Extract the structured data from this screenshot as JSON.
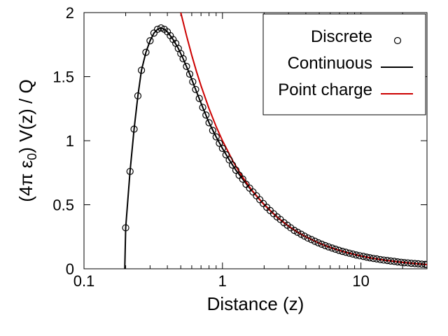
{
  "chart_data": {
    "type": "scatter",
    "title": "",
    "xlabel": "Distance (z)",
    "ylabel": "(4π ε0) V(z) / Q",
    "ylabel_parts": {
      "open": "(4π  ε",
      "sub": "0",
      "close": ") V(z) / Q"
    },
    "xscale": "log",
    "xlim": [
      0.1,
      30
    ],
    "ylim": [
      0,
      2
    ],
    "x_ticks": [
      0.1,
      1,
      10
    ],
    "x_tick_labels": [
      "0.1",
      "1",
      "10"
    ],
    "y_ticks": [
      0,
      0.5,
      1,
      1.5,
      2
    ],
    "y_tick_labels": [
      "0",
      "0.5",
      "1",
      "1.5",
      "2"
    ],
    "grid": false,
    "legend_position": "top-right",
    "series": [
      {
        "name": "Discrete",
        "style": "open-circle",
        "color": "#000000",
        "points": [
          [
            0.2,
            0.32
          ],
          [
            0.215,
            0.76
          ],
          [
            0.23,
            1.09
          ],
          [
            0.245,
            1.35
          ],
          [
            0.26,
            1.55
          ],
          [
            0.28,
            1.69
          ],
          [
            0.3,
            1.78
          ],
          [
            0.32,
            1.84
          ],
          [
            0.34,
            1.87
          ],
          [
            0.36,
            1.88
          ],
          [
            0.38,
            1.87
          ],
          [
            0.4,
            1.85
          ],
          [
            0.42,
            1.82
          ],
          [
            0.44,
            1.79
          ],
          [
            0.46,
            1.76
          ],
          [
            0.48,
            1.72
          ],
          [
            0.5,
            1.68
          ],
          [
            0.52,
            1.64
          ],
          [
            0.55,
            1.58
          ],
          [
            0.58,
            1.52
          ],
          [
            0.61,
            1.46
          ],
          [
            0.64,
            1.4
          ],
          [
            0.68,
            1.33
          ],
          [
            0.72,
            1.26
          ],
          [
            0.76,
            1.2
          ],
          [
            0.8,
            1.14
          ],
          [
            0.85,
            1.08
          ],
          [
            0.9,
            1.03
          ],
          [
            0.95,
            0.98
          ],
          [
            1.0,
            0.94
          ],
          [
            1.06,
            0.89
          ],
          [
            1.12,
            0.85
          ],
          [
            1.18,
            0.81
          ],
          [
            1.25,
            0.77
          ],
          [
            1.32,
            0.73
          ],
          [
            1.4,
            0.7
          ],
          [
            1.48,
            0.66
          ],
          [
            1.57,
            0.63
          ],
          [
            1.66,
            0.6
          ],
          [
            1.76,
            0.57
          ],
          [
            1.86,
            0.54
          ],
          [
            1.97,
            0.51
          ],
          [
            2.09,
            0.48
          ],
          [
            2.21,
            0.455
          ],
          [
            2.34,
            0.43
          ],
          [
            2.48,
            0.405
          ],
          [
            2.62,
            0.385
          ],
          [
            2.78,
            0.36
          ],
          [
            2.94,
            0.34
          ],
          [
            3.11,
            0.32
          ],
          [
            3.3,
            0.3
          ],
          [
            3.49,
            0.285
          ],
          [
            3.7,
            0.27
          ],
          [
            3.91,
            0.255
          ],
          [
            4.14,
            0.24
          ],
          [
            4.39,
            0.228
          ],
          [
            4.65,
            0.215
          ],
          [
            4.92,
            0.203
          ],
          [
            5.21,
            0.192
          ],
          [
            5.52,
            0.181
          ],
          [
            5.84,
            0.171
          ],
          [
            6.19,
            0.162
          ],
          [
            6.55,
            0.153
          ],
          [
            6.94,
            0.144
          ],
          [
            7.35,
            0.136
          ],
          [
            7.78,
            0.129
          ],
          [
            8.24,
            0.122
          ],
          [
            8.73,
            0.115
          ],
          [
            9.24,
            0.108
          ],
          [
            9.79,
            0.102
          ],
          [
            10.4,
            0.097
          ],
          [
            11.0,
            0.091
          ],
          [
            11.6,
            0.086
          ],
          [
            12.3,
            0.081
          ],
          [
            13.0,
            0.077
          ],
          [
            13.8,
            0.072
          ],
          [
            14.6,
            0.068
          ],
          [
            15.5,
            0.065
          ],
          [
            16.4,
            0.061
          ],
          [
            17.4,
            0.058
          ],
          [
            18.4,
            0.054
          ],
          [
            19.5,
            0.051
          ],
          [
            20.6,
            0.048
          ],
          [
            21.8,
            0.046
          ],
          [
            23.1,
            0.043
          ],
          [
            24.5,
            0.041
          ],
          [
            25.9,
            0.039
          ],
          [
            27.5,
            0.036
          ],
          [
            29.1,
            0.034
          ],
          [
            30.0,
            0.033
          ]
        ]
      },
      {
        "name": "Continuous",
        "style": "line",
        "color": "#000000",
        "points": [
          [
            0.197,
            0.0
          ],
          [
            0.2,
            0.32
          ],
          [
            0.215,
            0.76
          ],
          [
            0.23,
            1.09
          ],
          [
            0.245,
            1.35
          ],
          [
            0.26,
            1.55
          ],
          [
            0.28,
            1.69
          ],
          [
            0.3,
            1.78
          ],
          [
            0.32,
            1.84
          ],
          [
            0.34,
            1.87
          ],
          [
            0.36,
            1.88
          ],
          [
            0.38,
            1.87
          ],
          [
            0.4,
            1.85
          ],
          [
            0.44,
            1.79
          ],
          [
            0.48,
            1.72
          ],
          [
            0.52,
            1.64
          ],
          [
            0.58,
            1.52
          ],
          [
            0.64,
            1.4
          ],
          [
            0.72,
            1.26
          ],
          [
            0.8,
            1.14
          ],
          [
            0.9,
            1.03
          ],
          [
            1.0,
            0.94
          ],
          [
            1.12,
            0.85
          ],
          [
            1.25,
            0.77
          ],
          [
            1.4,
            0.7
          ],
          [
            1.57,
            0.63
          ],
          [
            1.76,
            0.57
          ],
          [
            1.97,
            0.51
          ],
          [
            2.21,
            0.455
          ],
          [
            2.48,
            0.405
          ],
          [
            2.78,
            0.36
          ],
          [
            3.11,
            0.32
          ],
          [
            3.49,
            0.285
          ],
          [
            3.91,
            0.255
          ],
          [
            4.39,
            0.228
          ],
          [
            4.92,
            0.203
          ],
          [
            5.52,
            0.181
          ],
          [
            6.19,
            0.162
          ],
          [
            6.94,
            0.144
          ],
          [
            7.78,
            0.129
          ],
          [
            8.73,
            0.115
          ],
          [
            9.79,
            0.102
          ],
          [
            11.0,
            0.091
          ],
          [
            12.3,
            0.081
          ],
          [
            13.8,
            0.072
          ],
          [
            15.5,
            0.065
          ],
          [
            17.4,
            0.058
          ],
          [
            19.5,
            0.051
          ],
          [
            21.8,
            0.046
          ],
          [
            24.5,
            0.041
          ],
          [
            27.5,
            0.036
          ],
          [
            30.0,
            0.033
          ]
        ]
      },
      {
        "name": "Point charge",
        "style": "line",
        "color": "#cc0000",
        "points": [
          [
            0.5,
            2.0
          ],
          [
            0.55,
            1.82
          ],
          [
            0.6,
            1.667
          ],
          [
            0.65,
            1.538
          ],
          [
            0.7,
            1.429
          ],
          [
            0.8,
            1.25
          ],
          [
            0.9,
            1.111
          ],
          [
            1.0,
            1.0
          ],
          [
            1.2,
            0.833
          ],
          [
            1.4,
            0.714
          ],
          [
            1.6,
            0.625
          ],
          [
            1.8,
            0.556
          ],
          [
            2.0,
            0.5
          ],
          [
            2.5,
            0.4
          ],
          [
            3.0,
            0.333
          ],
          [
            3.5,
            0.286
          ],
          [
            4.0,
            0.25
          ],
          [
            5.0,
            0.2
          ],
          [
            6.0,
            0.167
          ],
          [
            7.0,
            0.143
          ],
          [
            8.0,
            0.125
          ],
          [
            10.0,
            0.1
          ],
          [
            12.0,
            0.083
          ],
          [
            15.0,
            0.067
          ],
          [
            18.0,
            0.056
          ],
          [
            21.0,
            0.048
          ],
          [
            25.0,
            0.04
          ],
          [
            30.0,
            0.033
          ]
        ]
      }
    ]
  }
}
